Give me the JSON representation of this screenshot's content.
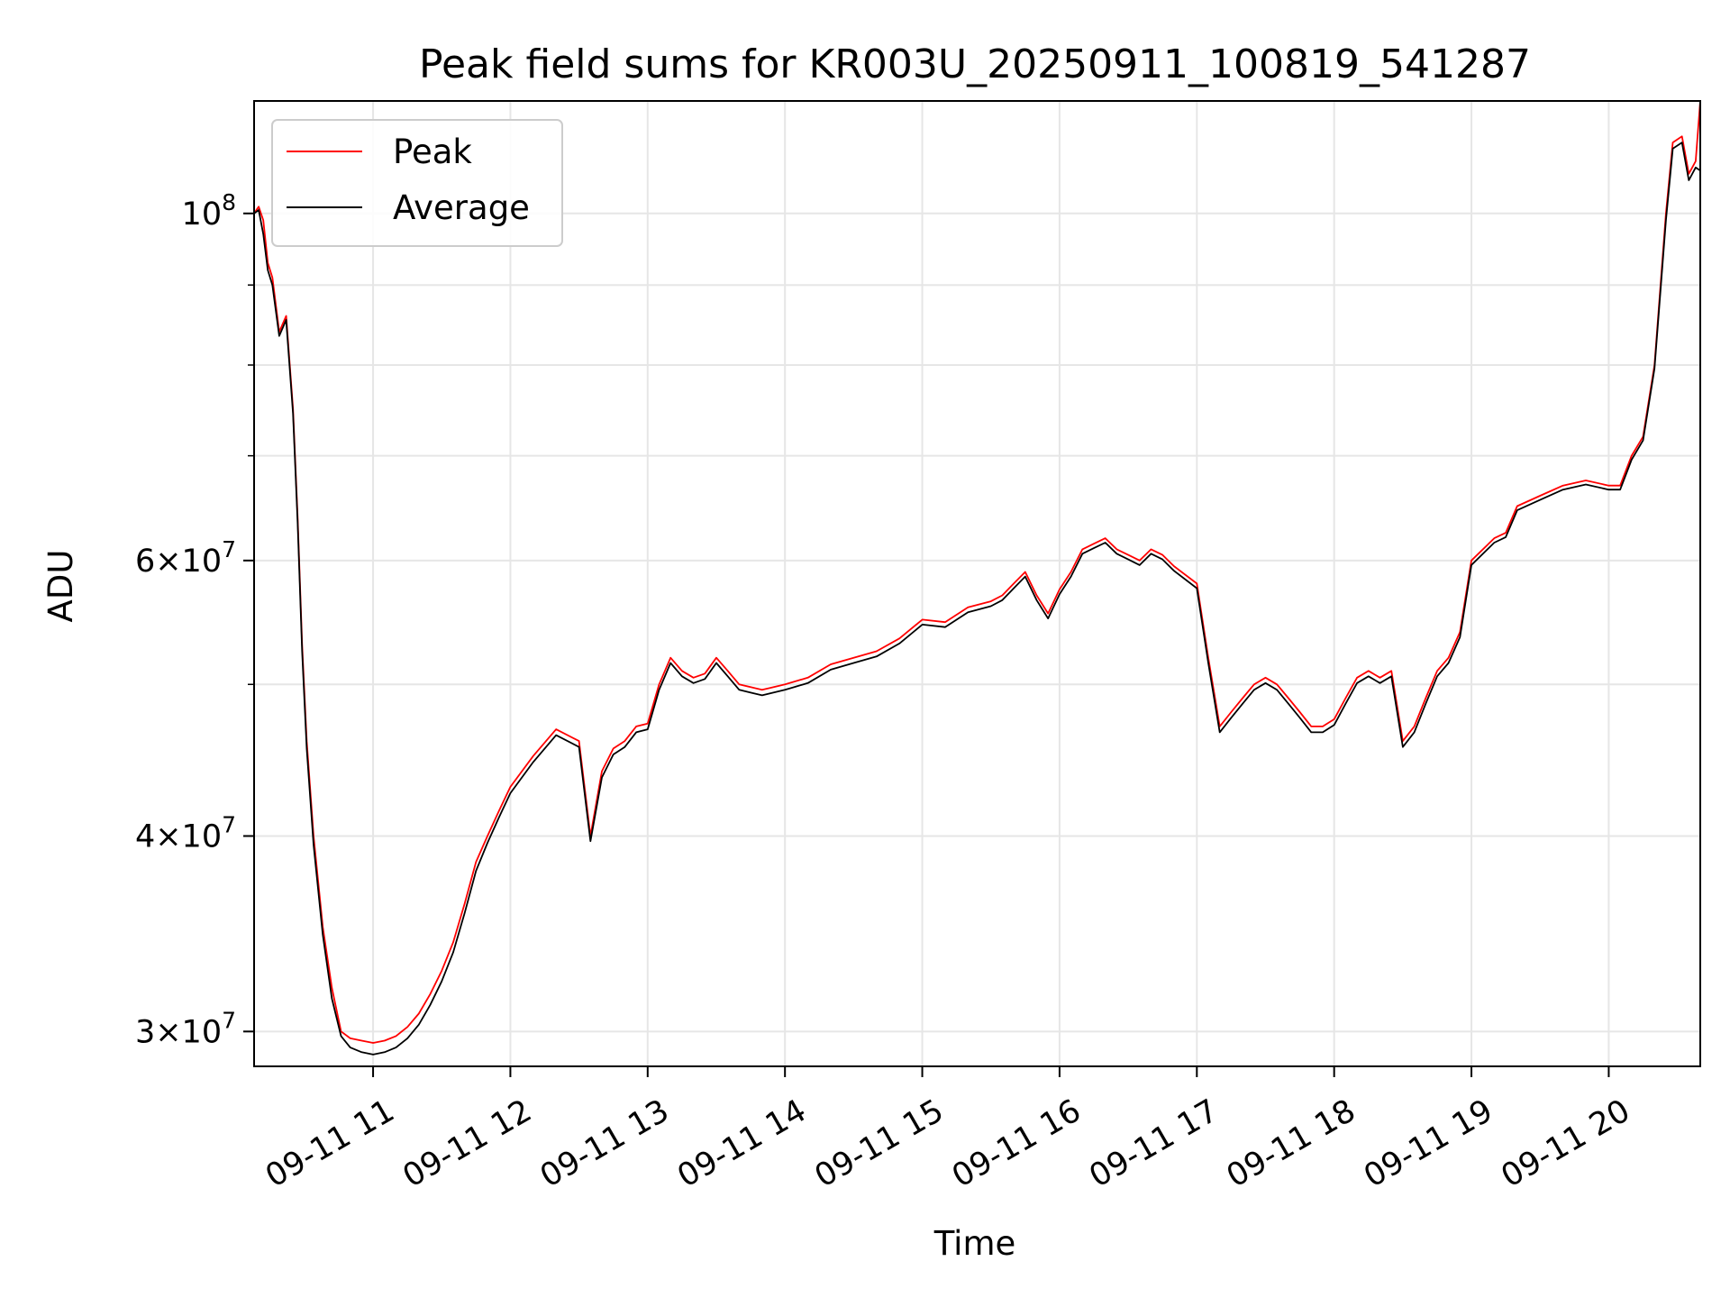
{
  "chart_data": {
    "type": "line",
    "title": "Peak field sums for KR003U_20250911_100819_541287",
    "xlabel": "Time",
    "ylabel": "ADU",
    "yscale": "log",
    "xlim": [
      "2025-09-11 10:08",
      "2025-09-11 20:40"
    ],
    "ylim": [
      28500000,
      118000000
    ],
    "grid": true,
    "legend": {
      "placement": "top-left"
    },
    "x_ticks": [
      "09-11 11",
      "09-11 12",
      "09-11 13",
      "09-11 14",
      "09-11 15",
      "09-11 16",
      "09-11 17",
      "09-11 18",
      "09-11 19",
      "09-11 20"
    ],
    "x_tick_times": [
      "2025-09-11 11:00",
      "2025-09-11 12:00",
      "2025-09-11 13:00",
      "2025-09-11 14:00",
      "2025-09-11 15:00",
      "2025-09-11 16:00",
      "2025-09-11 17:00",
      "2025-09-11 18:00",
      "2025-09-11 19:00",
      "2025-09-11 20:00"
    ],
    "y_ticks_major": [
      {
        "value": 30000000,
        "mantissa": "3",
        "exponent": "7"
      },
      {
        "value": 40000000,
        "mantissa": "4",
        "exponent": "7"
      },
      {
        "value": 60000000,
        "mantissa": "6",
        "exponent": "7"
      },
      {
        "value": 100000000,
        "mantissa": "",
        "exponent": "8"
      }
    ],
    "y_ticks_minor": [
      50000000,
      70000000,
      80000000,
      90000000
    ],
    "times": [
      "2025-09-11 10:08",
      "2025-09-11 10:10",
      "2025-09-11 10:12",
      "2025-09-11 10:14",
      "2025-09-11 10:16",
      "2025-09-11 10:19",
      "2025-09-11 10:22",
      "2025-09-11 10:25",
      "2025-09-11 10:27",
      "2025-09-11 10:29",
      "2025-09-11 10:31",
      "2025-09-11 10:34",
      "2025-09-11 10:38",
      "2025-09-11 10:42",
      "2025-09-11 10:46",
      "2025-09-11 10:50",
      "2025-09-11 10:55",
      "2025-09-11 11:00",
      "2025-09-11 11:05",
      "2025-09-11 11:10",
      "2025-09-11 11:15",
      "2025-09-11 11:20",
      "2025-09-11 11:25",
      "2025-09-11 11:30",
      "2025-09-11 11:35",
      "2025-09-11 11:40",
      "2025-09-11 11:45",
      "2025-09-11 11:50",
      "2025-09-11 11:55",
      "2025-09-11 12:00",
      "2025-09-11 12:10",
      "2025-09-11 12:20",
      "2025-09-11 12:30",
      "2025-09-11 12:35",
      "2025-09-11 12:40",
      "2025-09-11 12:45",
      "2025-09-11 12:50",
      "2025-09-11 12:55",
      "2025-09-11 13:00",
      "2025-09-11 13:05",
      "2025-09-11 13:10",
      "2025-09-11 13:15",
      "2025-09-11 13:20",
      "2025-09-11 13:25",
      "2025-09-11 13:30",
      "2025-09-11 13:35",
      "2025-09-11 13:40",
      "2025-09-11 13:45",
      "2025-09-11 13:50",
      "2025-09-11 14:00",
      "2025-09-11 14:10",
      "2025-09-11 14:20",
      "2025-09-11 14:30",
      "2025-09-11 14:40",
      "2025-09-11 14:50",
      "2025-09-11 15:00",
      "2025-09-11 15:10",
      "2025-09-11 15:20",
      "2025-09-11 15:30",
      "2025-09-11 15:35",
      "2025-09-11 15:40",
      "2025-09-11 15:45",
      "2025-09-11 15:50",
      "2025-09-11 15:55",
      "2025-09-11 16:00",
      "2025-09-11 16:05",
      "2025-09-11 16:10",
      "2025-09-11 16:15",
      "2025-09-11 16:20",
      "2025-09-11 16:25",
      "2025-09-11 16:30",
      "2025-09-11 16:35",
      "2025-09-11 16:40",
      "2025-09-11 16:45",
      "2025-09-11 16:50",
      "2025-09-11 17:00",
      "2025-09-11 17:05",
      "2025-09-11 17:10",
      "2025-09-11 17:15",
      "2025-09-11 17:20",
      "2025-09-11 17:25",
      "2025-09-11 17:30",
      "2025-09-11 17:35",
      "2025-09-11 17:40",
      "2025-09-11 17:45",
      "2025-09-11 17:50",
      "2025-09-11 17:55",
      "2025-09-11 18:00",
      "2025-09-11 18:05",
      "2025-09-11 18:10",
      "2025-09-11 18:15",
      "2025-09-11 18:20",
      "2025-09-11 18:25",
      "2025-09-11 18:30",
      "2025-09-11 18:35",
      "2025-09-11 18:40",
      "2025-09-11 18:45",
      "2025-09-11 18:50",
      "2025-09-11 18:55",
      "2025-09-11 19:00",
      "2025-09-11 19:10",
      "2025-09-11 19:15",
      "2025-09-11 19:20",
      "2025-09-11 19:30",
      "2025-09-11 19:40",
      "2025-09-11 19:50",
      "2025-09-11 20:00",
      "2025-09-11 20:05",
      "2025-09-11 20:10",
      "2025-09-11 20:15",
      "2025-09-11 20:20",
      "2025-09-11 20:25",
      "2025-09-11 20:28",
      "2025-09-11 20:32",
      "2025-09-11 20:35",
      "2025-09-11 20:38",
      "2025-09-11 20:40"
    ],
    "series": [
      {
        "name": "Peak",
        "color": "#ff0000",
        "values": [
          100000000,
          101000000,
          99000000,
          93000000,
          91000000,
          84000000,
          86000000,
          75000000,
          64000000,
          53000000,
          46000000,
          40000000,
          35000000,
          32000000,
          30000000,
          29700000,
          29600000,
          29500000,
          29600000,
          29800000,
          30200000,
          30800000,
          31700000,
          32800000,
          34200000,
          36200000,
          38500000,
          40000000,
          41500000,
          43000000,
          45000000,
          46800000,
          46000000,
          40000000,
          44000000,
          45500000,
          46000000,
          47000000,
          47200000,
          50000000,
          52000000,
          51000000,
          50500000,
          50800000,
          52000000,
          51000000,
          50000000,
          49800000,
          49600000,
          50000000,
          50500000,
          51500000,
          52000000,
          52500000,
          53500000,
          55000000,
          54800000,
          56000000,
          56500000,
          57000000,
          58000000,
          59000000,
          57000000,
          55500000,
          57500000,
          59000000,
          61000000,
          61500000,
          62000000,
          61000000,
          60500000,
          60000000,
          61000000,
          60500000,
          59500000,
          58000000,
          52000000,
          47000000,
          48000000,
          49000000,
          50000000,
          50500000,
          50000000,
          49000000,
          48000000,
          47000000,
          47000000,
          47500000,
          49000000,
          50500000,
          51000000,
          50500000,
          51000000,
          46000000,
          47000000,
          49000000,
          51000000,
          52000000,
          54000000,
          60000000,
          62000000,
          62500000,
          65000000,
          66000000,
          67000000,
          67500000,
          67000000,
          67000000,
          70000000,
          72000000,
          80000000,
          100000000,
          111000000,
          112000000,
          106000000,
          108000000,
          118000000
        ]
      },
      {
        "name": "Average",
        "color": "#000000",
        "values": [
          100000000,
          100500000,
          97000000,
          92000000,
          90000000,
          83500000,
          85500000,
          74500000,
          63500000,
          52500000,
          45500000,
          39500000,
          34600000,
          31500000,
          29800000,
          29300000,
          29100000,
          29000000,
          29100000,
          29300000,
          29700000,
          30300000,
          31200000,
          32300000,
          33700000,
          35700000,
          38000000,
          39600000,
          41100000,
          42600000,
          44600000,
          46400000,
          45600000,
          39700000,
          43600000,
          45100000,
          45600000,
          46600000,
          46800000,
          49600000,
          51600000,
          50600000,
          50100000,
          50400000,
          51600000,
          50600000,
          49600000,
          49400000,
          49200000,
          49600000,
          50100000,
          51100000,
          51600000,
          52100000,
          53100000,
          54600000,
          54400000,
          55600000,
          56100000,
          56600000,
          57600000,
          58600000,
          56600000,
          55100000,
          57100000,
          58600000,
          60600000,
          61100000,
          61600000,
          60600000,
          60100000,
          59600000,
          60600000,
          60100000,
          59100000,
          57600000,
          51600000,
          46600000,
          47600000,
          48600000,
          49600000,
          50100000,
          49600000,
          48600000,
          47600000,
          46600000,
          46600000,
          47100000,
          48600000,
          50100000,
          50600000,
          50100000,
          50600000,
          45600000,
          46600000,
          48600000,
          50600000,
          51600000,
          53600000,
          59600000,
          61600000,
          62100000,
          64600000,
          65600000,
          66600000,
          67100000,
          66600000,
          66600000,
          69600000,
          71600000,
          79600000,
          99000000,
          110000000,
          111000000,
          105000000,
          107000000,
          106500000
        ]
      }
    ]
  }
}
